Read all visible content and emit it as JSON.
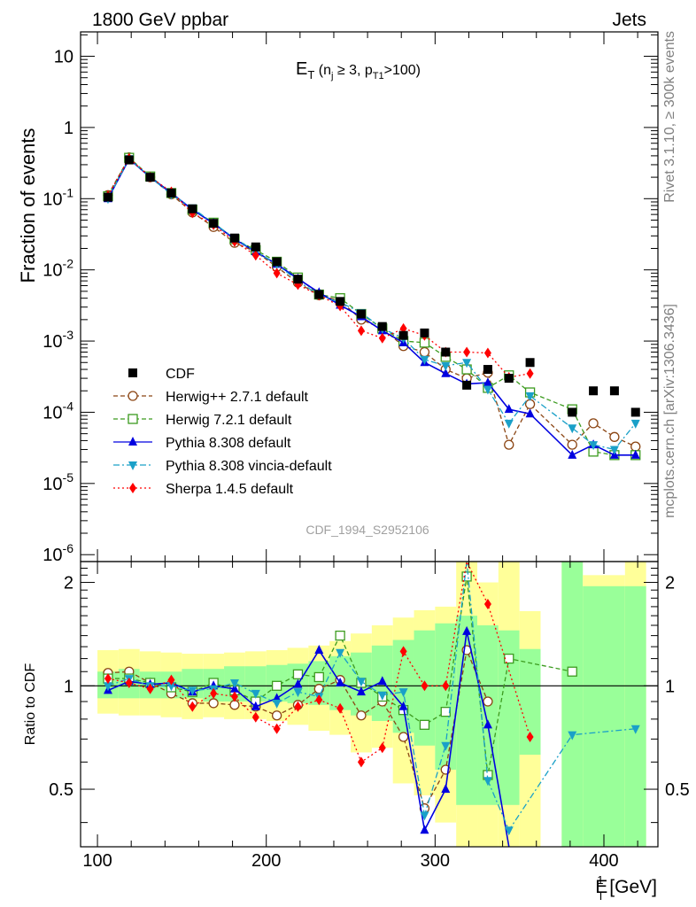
{
  "header": {
    "left": "1800 GeV ppbar",
    "right": "Jets"
  },
  "side_text": {
    "rivet": "Rivet 3.1.10, ≥ 300k events",
    "mcplots": "mcplots.cern.ch [arXiv:1306.3436]"
  },
  "analysis_id": "CDF_1994_S2952106",
  "chart_data": {
    "type": "line",
    "title": "E_T (n_j ≥ 3, p_T1>100)",
    "title_parts": {
      "main": "E",
      "main_sub": "T",
      "open": " (n",
      "nj_sub": "j",
      "cond": " ≥ 3, p",
      "pt_sub": "T1",
      "close": ">100)"
    },
    "xlabel": "E_T^1 [GeV]",
    "xlabel_parts": {
      "main": "E",
      "sup": "1",
      "sub": "T",
      "unit": " [GeV]"
    },
    "ylabel": "Fraction of events",
    "ratio_ylabel": "Ratio to CDF",
    "xlim": [
      90,
      432
    ],
    "ylim": [
      8e-07,
      22
    ],
    "ratio_ylim": [
      0.34,
      2.3
    ],
    "yscale": "log",
    "ratio_yscale": "log",
    "x_ticks": [
      100,
      200,
      300,
      400
    ],
    "y_ticks": [
      {
        "mantissa": "10",
        "exp": "-6",
        "value": 1e-06
      },
      {
        "mantissa": "10",
        "exp": "-5",
        "value": 1e-05
      },
      {
        "mantissa": "10",
        "exp": "-4",
        "value": 0.0001
      },
      {
        "mantissa": "10",
        "exp": "-3",
        "value": 0.001
      },
      {
        "mantissa": "10",
        "exp": "-2",
        "value": 0.01
      },
      {
        "mantissa": "10",
        "exp": "-1",
        "value": 0.1
      },
      {
        "mantissa": "1",
        "exp": "",
        "value": 1
      },
      {
        "mantissa": "10",
        "exp": "",
        "value": 10
      }
    ],
    "ratio_ticks": [
      0.5,
      1,
      2
    ],
    "bands_x": [
      [
        100,
        112.5
      ],
      [
        112.5,
        125
      ],
      [
        125,
        137.5
      ],
      [
        137.5,
        150
      ],
      [
        150,
        162.5
      ],
      [
        162.5,
        175
      ],
      [
        175,
        187.5
      ],
      [
        187.5,
        200
      ],
      [
        200,
        212.5
      ],
      [
        212.5,
        225
      ],
      [
        225,
        237.5
      ],
      [
        237.5,
        250
      ],
      [
        250,
        262.5
      ],
      [
        262.5,
        275
      ],
      [
        275,
        287.5
      ],
      [
        287.5,
        300
      ],
      [
        300,
        312.5
      ],
      [
        312.5,
        325
      ],
      [
        325,
        337.5
      ],
      [
        337.5,
        350
      ],
      [
        350,
        362.5
      ],
      [
        375,
        387.5
      ],
      [
        387.5,
        400
      ],
      [
        400,
        412.5
      ],
      [
        412.5,
        425
      ]
    ],
    "band_yellow": [
      [
        0.83,
        1.27
      ],
      [
        0.82,
        1.28
      ],
      [
        0.82,
        1.26
      ],
      [
        0.81,
        1.25
      ],
      [
        0.8,
        1.24
      ],
      [
        0.81,
        1.24
      ],
      [
        0.8,
        1.25
      ],
      [
        0.8,
        1.26
      ],
      [
        0.79,
        1.27
      ],
      [
        0.77,
        1.29
      ],
      [
        0.74,
        1.31
      ],
      [
        0.72,
        1.35
      ],
      [
        0.64,
        1.42
      ],
      [
        0.66,
        1.5
      ],
      [
        0.52,
        1.58
      ],
      [
        0.48,
        1.66
      ],
      [
        0.4,
        1.7
      ],
      [
        0.34,
        2.3
      ],
      [
        0.34,
        2.0
      ],
      [
        0.34,
        2.3
      ],
      [
        0.34,
        1.65
      ],
      [
        0.34,
        2.3
      ],
      [
        0.34,
        2.1
      ],
      [
        0.34,
        2.1
      ],
      [
        0.34,
        2.3
      ]
    ],
    "band_green": [
      [
        0.92,
        1.1
      ],
      [
        0.92,
        1.12
      ],
      [
        0.92,
        1.1
      ],
      [
        0.92,
        1.1
      ],
      [
        0.92,
        1.12
      ],
      [
        0.9,
        1.12
      ],
      [
        0.9,
        1.14
      ],
      [
        0.9,
        1.14
      ],
      [
        0.9,
        1.15
      ],
      [
        0.89,
        1.16
      ],
      [
        0.88,
        1.18
      ],
      [
        0.85,
        1.22
      ],
      [
        0.82,
        1.25
      ],
      [
        0.79,
        1.31
      ],
      [
        0.73,
        1.36
      ],
      [
        0.67,
        1.45
      ],
      [
        0.57,
        1.52
      ],
      [
        0.45,
        1.6
      ],
      [
        0.45,
        1.5
      ],
      [
        0.45,
        1.45
      ],
      [
        0.63,
        1.28
      ],
      [
        0.34,
        2.3
      ],
      [
        0.34,
        1.95
      ],
      [
        0.34,
        1.95
      ],
      [
        0.34,
        1.95
      ]
    ],
    "data": {
      "name": "CDF",
      "x": [
        106.25,
        118.75,
        131.25,
        143.75,
        156.25,
        168.75,
        181.25,
        193.75,
        206.25,
        218.75,
        231.25,
        243.75,
        256.25,
        268.75,
        281.25,
        293.75,
        306.25,
        318.75,
        331.25,
        343.75,
        356.25,
        381.25,
        393.75,
        406.25,
        418.75
      ],
      "values": [
        0.105,
        0.35,
        0.2,
        0.12,
        0.072,
        0.045,
        0.028,
        0.021,
        0.013,
        0.0074,
        0.0045,
        0.0036,
        0.0024,
        0.0016,
        0.0012,
        0.0013,
        0.0007,
        0.00024,
        0.0004,
        0.0003,
        0.0005,
        0.0001,
        0.0002,
        0.0002,
        0.0001
      ]
    },
    "series": [
      {
        "name": "Herwig++ 2.7.1 default",
        "color": "#8B4513",
        "marker": "circle-open",
        "dash": "5,3",
        "x": [
          106.25,
          118.75,
          131.25,
          143.75,
          156.25,
          168.75,
          181.25,
          193.75,
          206.25,
          218.75,
          231.25,
          243.75,
          256.25,
          268.75,
          281.25,
          293.75,
          306.25,
          318.75,
          331.25,
          343.75,
          356.25,
          381.25,
          393.75,
          406.25,
          418.75
        ],
        "values": [
          0.112,
          0.38,
          0.2,
          0.115,
          0.064,
          0.04,
          0.024,
          0.018,
          0.011,
          0.0066,
          0.0044,
          0.0037,
          0.002,
          0.0015,
          0.00085,
          0.0007,
          0.0004,
          0.0003,
          0.00036,
          3.5e-05,
          0.00013,
          3.5e-05,
          7e-05,
          4.5e-05,
          3.3e-05
        ],
        "ratio": [
          1.09,
          1.1,
          1.02,
          0.95,
          0.89,
          0.89,
          0.88,
          0.87,
          0.82,
          0.88,
          0.98,
          1.04,
          0.82,
          0.9,
          0.71,
          0.44,
          0.57,
          1.27,
          0.9,
          null,
          null,
          null,
          null,
          null,
          null
        ]
      },
      {
        "name": "Herwig 7.2.1 default",
        "color": "#3c9b1f",
        "marker": "square-open",
        "dash": "5,3",
        "x": [
          106.25,
          118.75,
          131.25,
          143.75,
          156.25,
          168.75,
          181.25,
          193.75,
          206.25,
          218.75,
          231.25,
          243.75,
          256.25,
          268.75,
          281.25,
          293.75,
          306.25,
          318.75,
          331.25,
          343.75,
          356.25,
          381.25,
          393.75,
          406.25,
          418.75
        ],
        "values": [
          0.108,
          0.375,
          0.205,
          0.12,
          0.07,
          0.046,
          0.027,
          0.019,
          0.013,
          0.0078,
          0.0045,
          0.004,
          0.0024,
          0.0015,
          0.001,
          0.00095,
          0.0006,
          0.0004,
          0.00022,
          0.00033,
          0.00019,
          0.00011,
          2.8e-05,
          2.5e-05,
          2.5e-05
        ],
        "ratio": [
          1.05,
          1.05,
          1.02,
          0.99,
          0.96,
          1.02,
          0.97,
          0.9,
          1.0,
          1.08,
          1.06,
          1.4,
          1.02,
          0.93,
          0.85,
          0.77,
          0.84,
          2.08,
          0.55,
          1.2,
          null,
          1.1,
          null,
          null,
          null
        ]
      },
      {
        "name": "Pythia 8.308 default",
        "color": "#0000e0",
        "marker": "triangle-up",
        "dash": "",
        "x": [
          106.25,
          118.75,
          131.25,
          143.75,
          156.25,
          168.75,
          181.25,
          193.75,
          206.25,
          218.75,
          231.25,
          243.75,
          256.25,
          268.75,
          281.25,
          293.75,
          306.25,
          318.75,
          331.25,
          343.75,
          356.25,
          381.25,
          393.75,
          406.25,
          418.75
        ],
        "values": [
          0.1,
          0.36,
          0.2,
          0.12,
          0.07,
          0.045,
          0.027,
          0.018,
          0.012,
          0.0075,
          0.0048,
          0.0032,
          0.0022,
          0.0014,
          0.00095,
          0.0005,
          0.00035,
          0.00025,
          0.00026,
          0.00011,
          9.5e-05,
          2.5e-05,
          3.5e-05,
          2.5e-05,
          2.5e-05
        ],
        "ratio": [
          0.97,
          1.03,
          1.01,
          1.02,
          0.96,
          1.0,
          0.98,
          0.87,
          0.92,
          1.01,
          1.27,
          1.02,
          0.96,
          1.03,
          0.87,
          0.38,
          0.5,
          1.44,
          0.77,
          0.34,
          null,
          null,
          null,
          null,
          null
        ]
      },
      {
        "name": "Pythia 8.308 vincia-default",
        "color": "#1aa0c8",
        "marker": "triangle-down",
        "dash": "7,3,2,3",
        "x": [
          106.25,
          118.75,
          131.25,
          143.75,
          156.25,
          168.75,
          181.25,
          193.75,
          206.25,
          218.75,
          231.25,
          243.75,
          256.25,
          268.75,
          281.25,
          293.75,
          306.25,
          318.75,
          331.25,
          343.75,
          356.25,
          381.25,
          393.75,
          406.25,
          418.75
        ],
        "values": [
          0.1,
          0.365,
          0.2,
          0.115,
          0.074,
          0.045,
          0.028,
          0.018,
          0.012,
          0.007,
          0.0044,
          0.0035,
          0.0025,
          0.0015,
          0.0011,
          0.00055,
          0.00045,
          0.0005,
          0.00021,
          7e-05,
          0.00017,
          6e-05,
          3.5e-05,
          3e-05,
          7e-05
        ],
        "ratio": [
          1.0,
          1.05,
          1.0,
          1.0,
          0.97,
          0.98,
          1.02,
          0.95,
          0.89,
          0.96,
          0.93,
          1.25,
          1.03,
          0.94,
          0.96,
          0.42,
          0.67,
          2.3,
          0.53,
          0.38,
          null,
          0.72,
          null,
          null,
          0.75
        ]
      },
      {
        "name": "Sherpa 1.4.5 default",
        "color": "#ff0000",
        "marker": "diamond",
        "dash": "2,3",
        "x": [
          106.25,
          118.75,
          131.25,
          143.75,
          156.25,
          168.75,
          181.25,
          193.75,
          206.25,
          218.75,
          231.25,
          243.75,
          256.25,
          268.75,
          281.25,
          293.75,
          306.25,
          318.75,
          331.25,
          343.75,
          356.25,
          381.25,
          393.75,
          406.25,
          418.75
        ],
        "values": [
          0.11,
          0.37,
          0.2,
          0.125,
          0.063,
          0.043,
          0.025,
          0.016,
          0.009,
          0.0062,
          0.0044,
          0.0031,
          0.0014,
          0.0011,
          0.0015,
          0.0012,
          0.0007,
          0.0007,
          0.00068,
          0.00031,
          0.00035,
          null,
          null,
          null,
          null
        ],
        "ratio": [
          1.05,
          1.02,
          0.98,
          1.04,
          0.87,
          0.95,
          0.93,
          0.81,
          0.75,
          0.87,
          0.91,
          0.86,
          0.6,
          0.66,
          1.26,
          1.0,
          1.0,
          2.3,
          1.73,
          null,
          0.71,
          null,
          null,
          null,
          null
        ]
      }
    ]
  }
}
